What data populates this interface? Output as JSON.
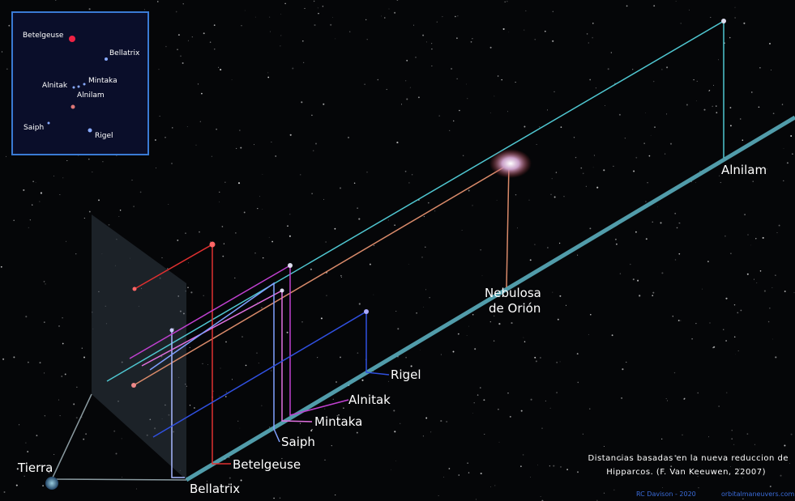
{
  "inset": {
    "labels": [
      "Betelgeuse",
      "Bellatrix",
      "Alnitak",
      "Mintaka",
      "Alnilam",
      "Saiph",
      "Rigel"
    ]
  },
  "labels": {
    "alnilam": "Alnilam",
    "nebula_line1": "Nebulosa",
    "nebula_line2": "de Orión",
    "rigel": "Rigel",
    "alnitak": "Alnitak",
    "mintaka": "Mintaka",
    "saiph": "Saiph",
    "betelgeuse": "Betelgeuse",
    "bellatrix": "Bellatrix",
    "earth": "Tierra"
  },
  "caption": [
    "Distancias basadas en la nueva reduccion de",
    "Hipparcos. (F. Van Keeuwen, 22007)"
  ],
  "credits": {
    "author": "RC Davison - 2020",
    "site": "orbitalmaneuvers.com"
  }
}
